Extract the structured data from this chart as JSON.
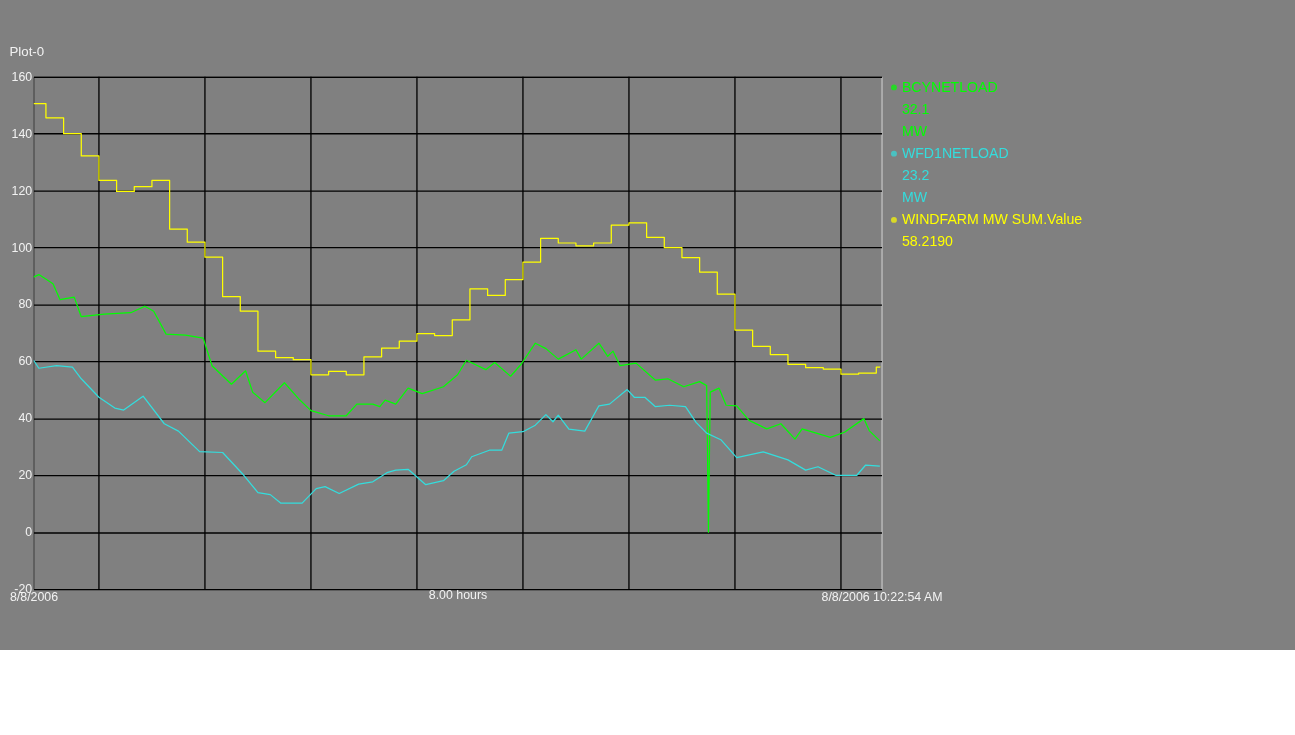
{
  "chart_data": {
    "type": "line",
    "title": "Plot-0",
    "xlabel": "8.00 hours",
    "xlim": [
      "2006-08-08T02:23",
      "2006-08-08T10:23"
    ],
    "xticks": [
      {
        "value": "2006-08-08T02:23",
        "label": "8/8/2006"
      },
      {
        "value": "2006-08-08T03:00",
        "label": null
      },
      {
        "value": "2006-08-08T04:00",
        "label": null
      },
      {
        "value": "2006-08-08T05:00",
        "label": null
      },
      {
        "value": "2006-08-08T06:00",
        "label": null
      },
      {
        "value": "2006-08-08T07:00",
        "label": null
      },
      {
        "value": "2006-08-08T08:00",
        "label": null
      },
      {
        "value": "2006-08-08T09:00",
        "label": null
      },
      {
        "value": "2006-08-08T10:00",
        "label": null
      },
      {
        "value": "2006-08-08T10:23",
        "label": "8/8/2006 10:22:54 AM"
      }
    ],
    "ylim": [
      -20,
      160
    ],
    "yticks": [
      -20,
      0,
      20,
      40,
      60,
      80,
      100,
      120,
      140,
      160
    ],
    "grid": true,
    "legend": "right",
    "annotations": [
      "32.1\nMW",
      "23.2\nMW",
      "58.2190"
    ],
    "series": [
      {
        "name": "BCYNETLOAD",
        "color": "#00ff00",
        "x": [
          "2006-08-08T02:23",
          "2006-08-08T02:26",
          "2006-08-08T02:34",
          "2006-08-08T02:38",
          "2006-08-08T02:46",
          "2006-08-08T02:50",
          "2006-08-08T03:03",
          "2006-08-08T03:18",
          "2006-08-08T03:26",
          "2006-08-08T03:31",
          "2006-08-08T03:38",
          "2006-08-08T03:49",
          "2006-08-08T03:59",
          "2006-08-08T04:04",
          "2006-08-08T04:15",
          "2006-08-08T04:23",
          "2006-08-08T04:27",
          "2006-08-08T04:34",
          "2006-08-08T04:45",
          "2006-08-08T04:53",
          "2006-08-08T05:00",
          "2006-08-08T05:10",
          "2006-08-08T05:20",
          "2006-08-08T05:26",
          "2006-08-08T05:35",
          "2006-08-08T05:39",
          "2006-08-08T05:42",
          "2006-08-08T05:48",
          "2006-08-08T05:55",
          "2006-08-08T06:03",
          "2006-08-08T06:15",
          "2006-08-08T06:23",
          "2006-08-08T06:28",
          "2006-08-08T06:39",
          "2006-08-08T06:44",
          "2006-08-08T06:53",
          "2006-08-08T06:59",
          "2006-08-08T07:07",
          "2006-08-08T07:13",
          "2006-08-08T07:20",
          "2006-08-08T07:30",
          "2006-08-08T07:33",
          "2006-08-08T07:43",
          "2006-08-08T07:48",
          "2006-08-08T07:51",
          "2006-08-08T07:55",
          "2006-08-08T08:04",
          "2006-08-08T08:15",
          "2006-08-08T08:22",
          "2006-08-08T08:31",
          "2006-08-08T08:40",
          "2006-08-08T08:44",
          "2006-08-08T08:45",
          "2006-08-08T08:46",
          "2006-08-08T08:51",
          "2006-08-08T08:55",
          "2006-08-08T09:01",
          "2006-08-08T09:08",
          "2006-08-08T09:18",
          "2006-08-08T09:26",
          "2006-08-08T09:34",
          "2006-08-08T09:38",
          "2006-08-08T09:54",
          "2006-08-08T10:02",
          "2006-08-08T10:13",
          "2006-08-08T10:16",
          "2006-08-08T10:22"
        ],
        "values": [
          89.6,
          90.5,
          87.3,
          81.7,
          82.6,
          75.7,
          76.6,
          77.1,
          79.4,
          77.6,
          69.6,
          69.2,
          68.2,
          58.5,
          52.0,
          56.7,
          49.2,
          45.5,
          52.5,
          46.9,
          42.7,
          40.9,
          40.9,
          45.0,
          45.0,
          44.1,
          46.4,
          45.0,
          50.6,
          48.7,
          51.1,
          55.3,
          60.4,
          57.1,
          59.6,
          54.8,
          59.0,
          66.4,
          64.5,
          60.8,
          64.1,
          60.8,
          66.4,
          61.8,
          63.6,
          58.5,
          59.4,
          53.4,
          53.9,
          51.1,
          52.9,
          51.5,
          0.0,
          49.2,
          50.6,
          44.6,
          44.4,
          39.3,
          36.3,
          38.1,
          32.7,
          36.3,
          33.3,
          35.1,
          39.9,
          35.7,
          32.1
        ]
      },
      {
        "name": "WFD1NETLOAD",
        "color": "#33dddd",
        "x": [
          "2006-08-08T02:23",
          "2006-08-08T02:26",
          "2006-08-08T02:36",
          "2006-08-08T02:45",
          "2006-08-08T02:50",
          "2006-08-08T03:00",
          "2006-08-08T03:09",
          "2006-08-08T03:14",
          "2006-08-08T03:25",
          "2006-08-08T03:37",
          "2006-08-08T03:45",
          "2006-08-08T03:57",
          "2006-08-08T04:10",
          "2006-08-08T04:22",
          "2006-08-08T04:30",
          "2006-08-08T04:37",
          "2006-08-08T04:43",
          "2006-08-08T04:55",
          "2006-08-08T05:03",
          "2006-08-08T05:08",
          "2006-08-08T05:16",
          "2006-08-08T05:27",
          "2006-08-08T05:35",
          "2006-08-08T05:43",
          "2006-08-08T05:48",
          "2006-08-08T05:55",
          "2006-08-08T06:05",
          "2006-08-08T06:15",
          "2006-08-08T06:21",
          "2006-08-08T06:28",
          "2006-08-08T06:31",
          "2006-08-08T06:41",
          "2006-08-08T06:48",
          "2006-08-08T06:52",
          "2006-08-08T07:00",
          "2006-08-08T07:07",
          "2006-08-08T07:13",
          "2006-08-08T07:17",
          "2006-08-08T07:20",
          "2006-08-08T07:26",
          "2006-08-08T07:35",
          "2006-08-08T07:43",
          "2006-08-08T07:49",
          "2006-08-08T07:59",
          "2006-08-08T08:03",
          "2006-08-08T08:09",
          "2006-08-08T08:15",
          "2006-08-08T08:23",
          "2006-08-08T08:32",
          "2006-08-08T08:38",
          "2006-08-08T08:44",
          "2006-08-08T08:52",
          "2006-08-08T09:01",
          "2006-08-08T09:16",
          "2006-08-08T09:30",
          "2006-08-08T09:40",
          "2006-08-08T09:47",
          "2006-08-08T09:57",
          "2006-08-08T10:09",
          "2006-08-08T10:14",
          "2006-08-08T10:22"
        ],
        "values": [
          60.4,
          57.6,
          58.5,
          58.0,
          53.9,
          47.4,
          43.6,
          42.9,
          47.8,
          38.1,
          35.5,
          28.3,
          28.0,
          20.0,
          13.9,
          13.2,
          10.2,
          10.2,
          15.3,
          16.0,
          13.6,
          16.9,
          17.7,
          20.9,
          21.8,
          22.1,
          16.7,
          18.1,
          21.4,
          23.7,
          26.5,
          28.8,
          28.8,
          34.8,
          35.3,
          37.6,
          41.3,
          38.8,
          41.1,
          36.2,
          35.5,
          44.4,
          45.0,
          50.1,
          47.4,
          47.4,
          44.1,
          44.6,
          44.1,
          38.6,
          34.8,
          32.5,
          26.2,
          28.2,
          25.4,
          21.8,
          23.0,
          20.0,
          20.0,
          23.6,
          23.2
        ]
      },
      {
        "name": "WINDFARM MW SUM.Value",
        "color": "#ffff00",
        "type": "step",
        "x": [
          "2006-08-08T02:23",
          "2006-08-08T02:30",
          "2006-08-08T02:40",
          "2006-08-08T02:50",
          "2006-08-08T03:00",
          "2006-08-08T03:10",
          "2006-08-08T03:20",
          "2006-08-08T03:30",
          "2006-08-08T03:40",
          "2006-08-08T03:50",
          "2006-08-08T04:00",
          "2006-08-08T04:10",
          "2006-08-08T04:20",
          "2006-08-08T04:30",
          "2006-08-08T04:40",
          "2006-08-08T04:50",
          "2006-08-08T05:00",
          "2006-08-08T05:10",
          "2006-08-08T05:20",
          "2006-08-08T05:30",
          "2006-08-08T05:40",
          "2006-08-08T05:50",
          "2006-08-08T06:00",
          "2006-08-08T06:10",
          "2006-08-08T06:20",
          "2006-08-08T06:30",
          "2006-08-08T06:40",
          "2006-08-08T06:50",
          "2006-08-08T07:00",
          "2006-08-08T07:10",
          "2006-08-08T07:20",
          "2006-08-08T07:30",
          "2006-08-08T07:40",
          "2006-08-08T07:50",
          "2006-08-08T08:00",
          "2006-08-08T08:10",
          "2006-08-08T08:20",
          "2006-08-08T08:30",
          "2006-08-08T08:40",
          "2006-08-08T08:50",
          "2006-08-08T09:00",
          "2006-08-08T09:10",
          "2006-08-08T09:20",
          "2006-08-08T09:30",
          "2006-08-08T09:40",
          "2006-08-08T09:50",
          "2006-08-08T10:00",
          "2006-08-08T10:10",
          "2006-08-08T10:20",
          "2006-08-08T10:22"
        ],
        "values": [
          150.6,
          145.6,
          140.0,
          132.2,
          123.6,
          119.7,
          121.4,
          123.6,
          106.5,
          101.9,
          96.6,
          82.8,
          77.7,
          63.6,
          61.3,
          60.6,
          55.3,
          56.5,
          55.3,
          61.6,
          64.7,
          67.1,
          69.8,
          69.1,
          74.6,
          85.5,
          83.2,
          88.7,
          94.9,
          103.2,
          101.6,
          100.6,
          101.6,
          107.9,
          108.7,
          103.6,
          100.0,
          96.5,
          91.4,
          83.6,
          71.0,
          65.3,
          62.4,
          59.0,
          57.8,
          57.3,
          55.5,
          55.9,
          58.0,
          58.2
        ]
      }
    ]
  }
}
